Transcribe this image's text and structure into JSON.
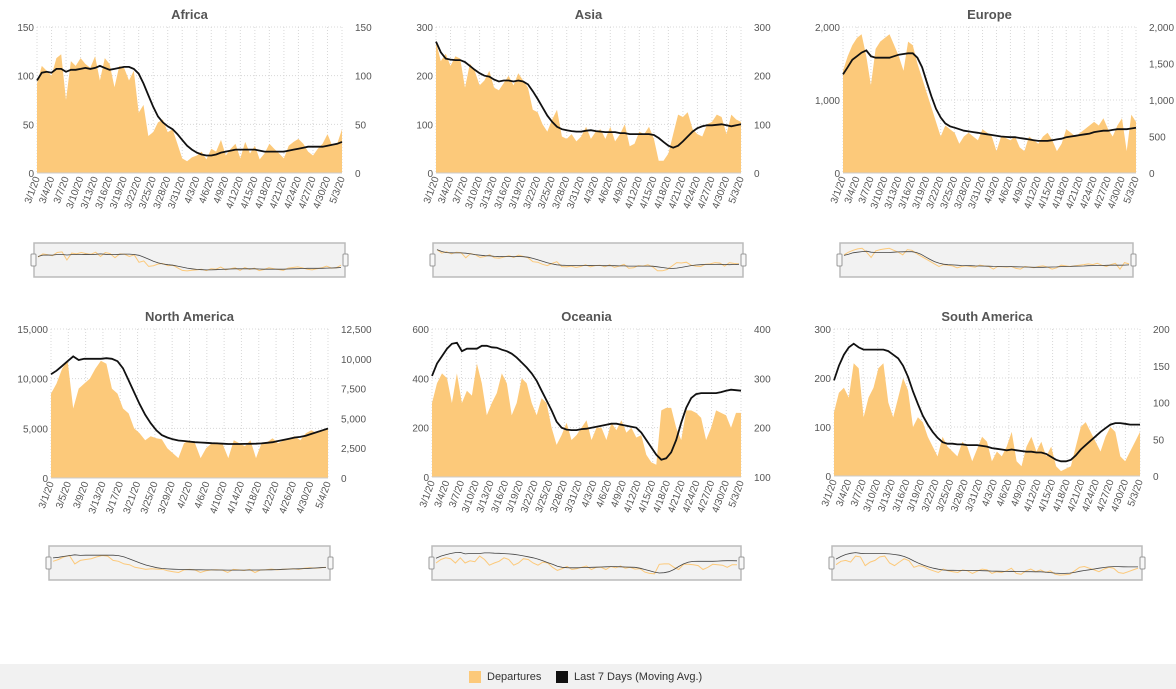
{
  "colors": {
    "area": "#fcc97a",
    "line": "#111111",
    "grid": "#d8d8d8",
    "tick_text": "#555555",
    "title_text": "#555555"
  },
  "legend": {
    "departures_label": "Departures",
    "moving_avg_label": "Last 7 Days (Moving Avg.)",
    "position": "bottom"
  },
  "chart_data": [
    {
      "type": "area",
      "title": "Africa",
      "x_labels": [
        "3/1/20",
        "3/4/20",
        "3/7/20",
        "3/10/20",
        "3/13/20",
        "3/16/20",
        "3/19/20",
        "3/22/20",
        "3/25/20",
        "3/28/20",
        "3/31/20",
        "4/3/20",
        "4/6/20",
        "4/9/20",
        "4/12/20",
        "4/15/20",
        "4/18/20",
        "4/21/20",
        "4/24/20",
        "4/27/20",
        "4/30/20",
        "5/3/20"
      ],
      "y_left_ticks": [
        "0",
        "50",
        "100",
        "150"
      ],
      "ylim_left": [
        0,
        150
      ],
      "y_right_ticks": [
        "0",
        "50",
        "100",
        "150"
      ],
      "ylim_right": [
        0,
        150
      ],
      "departures_axis": "left",
      "moving_avg_axis": "right",
      "departures": [
        92,
        110,
        105,
        100,
        118,
        122,
        75,
        115,
        110,
        118,
        112,
        108,
        120,
        95,
        118,
        112,
        88,
        110,
        108,
        95,
        105,
        62,
        70,
        38,
        42,
        52,
        55,
        42,
        45,
        30,
        15,
        12,
        16,
        18,
        22,
        14,
        25,
        22,
        34,
        18,
        25,
        30,
        15,
        32,
        20,
        28,
        14,
        20,
        30,
        25,
        20,
        15,
        28,
        32,
        35,
        30,
        22,
        18,
        25,
        30,
        40,
        28,
        30,
        45
      ],
      "moving_avg": [
        95,
        103,
        104,
        103,
        107,
        107,
        104,
        106,
        106,
        107,
        108,
        107,
        108,
        110,
        108,
        106,
        107,
        108,
        109,
        109,
        107,
        102,
        92,
        80,
        68,
        58,
        52,
        48,
        45,
        40,
        34,
        28,
        24,
        21,
        19,
        18,
        18,
        19,
        21,
        22,
        23,
        24,
        24,
        24,
        24,
        24,
        23,
        22,
        22,
        22,
        22,
        22,
        23,
        24,
        25,
        26,
        27,
        27,
        27,
        27,
        28,
        29,
        30,
        32
      ]
    },
    {
      "type": "area",
      "title": "Asia",
      "x_labels": [
        "3/1/20",
        "3/4/20",
        "3/7/20",
        "3/10/20",
        "3/13/20",
        "3/16/20",
        "3/19/20",
        "3/22/20",
        "3/25/20",
        "3/28/20",
        "3/31/20",
        "4/3/20",
        "4/6/20",
        "4/9/20",
        "4/12/20",
        "4/15/20",
        "4/18/20",
        "4/21/20",
        "4/24/20",
        "4/27/20",
        "4/30/20",
        "5/3/20"
      ],
      "y_left_ticks": [
        "0",
        "100",
        "200",
        "300"
      ],
      "ylim_left": [
        0,
        300
      ],
      "y_right_ticks": [
        "0",
        "100",
        "200",
        "300"
      ],
      "ylim_right": [
        0,
        300
      ],
      "departures_axis": "left",
      "moving_avg_axis": "right",
      "departures": [
        270,
        230,
        245,
        220,
        240,
        235,
        175,
        225,
        210,
        180,
        190,
        210,
        175,
        170,
        185,
        200,
        180,
        205,
        190,
        175,
        130,
        125,
        100,
        85,
        110,
        130,
        75,
        70,
        80,
        65,
        75,
        95,
        70,
        85,
        90,
        70,
        95,
        65,
        80,
        100,
        55,
        60,
        85,
        80,
        95,
        70,
        25,
        25,
        40,
        80,
        120,
        115,
        125,
        90,
        80,
        75,
        100,
        105,
        120,
        115,
        80,
        120,
        110,
        105
      ],
      "moving_avg": [
        270,
        248,
        235,
        233,
        232,
        232,
        228,
        220,
        212,
        205,
        200,
        198,
        192,
        188,
        190,
        190,
        188,
        190,
        188,
        182,
        168,
        152,
        135,
        118,
        105,
        95,
        90,
        88,
        86,
        85,
        85,
        87,
        88,
        86,
        85,
        84,
        84,
        84,
        82,
        82,
        80,
        80,
        80,
        80,
        80,
        78,
        72,
        64,
        56,
        52,
        56,
        65,
        75,
        85,
        92,
        96,
        98,
        98,
        99,
        100,
        98,
        96,
        98,
        100
      ]
    },
    {
      "type": "area",
      "title": "Europe",
      "x_labels": [
        "3/1/20",
        "3/4/20",
        "3/7/20",
        "3/10/20",
        "3/13/20",
        "3/16/20",
        "3/19/20",
        "3/22/20",
        "3/25/20",
        "3/28/20",
        "3/31/20",
        "4/3/20",
        "4/6/20",
        "4/9/20",
        "4/12/20",
        "4/15/20",
        "4/18/20",
        "4/21/20",
        "4/24/20",
        "4/27/20",
        "4/30/20",
        "5/3/20"
      ],
      "y_left_ticks": [
        "0",
        "1,000",
        "2,000"
      ],
      "ylim_left": [
        0,
        2000
      ],
      "y_right_ticks": [
        "0",
        "500",
        "1,000",
        "1,500",
        "2,000"
      ],
      "ylim_right": [
        0,
        2000
      ],
      "departures_axis": "left",
      "moving_avg_axis": "right",
      "departures": [
        1400,
        1600,
        1750,
        1850,
        1900,
        1600,
        1200,
        1700,
        1800,
        1850,
        1900,
        1750,
        1600,
        1400,
        1800,
        1750,
        1500,
        1300,
        1100,
        900,
        700,
        500,
        650,
        600,
        550,
        400,
        500,
        550,
        500,
        450,
        600,
        550,
        500,
        300,
        500,
        480,
        450,
        500,
        350,
        300,
        500,
        450,
        400,
        500,
        550,
        450,
        300,
        400,
        600,
        550,
        500,
        550,
        600,
        650,
        700,
        650,
        750,
        600,
        500,
        650,
        750,
        300,
        800,
        700
      ],
      "moving_avg": [
        1350,
        1450,
        1550,
        1600,
        1650,
        1680,
        1600,
        1580,
        1580,
        1580,
        1580,
        1600,
        1620,
        1630,
        1640,
        1640,
        1580,
        1450,
        1250,
        1050,
        880,
        760,
        680,
        640,
        620,
        600,
        580,
        570,
        560,
        550,
        540,
        530,
        520,
        510,
        500,
        495,
        490,
        490,
        480,
        470,
        460,
        450,
        440,
        440,
        440,
        450,
        460,
        470,
        490,
        500,
        510,
        520,
        530,
        540,
        560,
        570,
        580,
        580,
        590,
        600,
        600,
        600,
        610,
        620
      ]
    },
    {
      "type": "area",
      "title": "North America",
      "x_labels": [
        "3/1/20",
        "3/5/20",
        "3/9/20",
        "3/13/20",
        "3/17/20",
        "3/21/20",
        "3/25/20",
        "3/29/20",
        "4/2/20",
        "4/6/20",
        "4/10/20",
        "4/14/20",
        "4/18/20",
        "4/22/20",
        "4/26/20",
        "4/30/20",
        "5/4/20"
      ],
      "y_left_ticks": [
        "0",
        "5,000",
        "10,000",
        "15,000"
      ],
      "ylim_left": [
        0,
        15000
      ],
      "y_right_ticks": [
        "0",
        "2,500",
        "5,000",
        "7,500",
        "10,000",
        "12,500"
      ],
      "ylim_right": [
        0,
        12500
      ],
      "departures_axis": "left",
      "moving_avg_axis": "right",
      "departures": [
        8500,
        9500,
        11000,
        11800,
        7000,
        9000,
        9500,
        10000,
        11000,
        11800,
        11500,
        9000,
        8500,
        7000,
        6500,
        5000,
        4500,
        3800,
        4200,
        4000,
        3900,
        3000,
        2500,
        2000,
        3500,
        3800,
        3500,
        2000,
        3000,
        3500,
        3600,
        3400,
        2000,
        3800,
        3500,
        3200,
        3800,
        2000,
        3500,
        3600,
        4000,
        3500,
        3800,
        4000,
        4200,
        3800,
        4500,
        4800,
        4500,
        4800,
        5000
      ],
      "moving_avg": [
        8700,
        9000,
        9400,
        9800,
        10200,
        9900,
        10000,
        10000,
        10000,
        10000,
        10050,
        10000,
        9800,
        9200,
        8200,
        7200,
        6200,
        5300,
        4600,
        4000,
        3600,
        3400,
        3250,
        3150,
        3100,
        3050,
        3000,
        2980,
        2950,
        2920,
        2900,
        2880,
        2850,
        2850,
        2850,
        2860,
        2870,
        2880,
        2900,
        2950,
        3000,
        3100,
        3200,
        3300,
        3400,
        3450,
        3550,
        3700,
        3850,
        4000,
        4150
      ]
    },
    {
      "type": "area",
      "title": "Oceania",
      "x_labels": [
        "3/1/20",
        "3/4/20",
        "3/7/20",
        "3/10/20",
        "3/13/20",
        "3/16/20",
        "3/19/20",
        "3/22/20",
        "3/25/20",
        "3/28/20",
        "3/31/20",
        "4/3/20",
        "4/6/20",
        "4/9/20",
        "4/12/20",
        "4/15/20",
        "4/18/20",
        "4/21/20",
        "4/24/20",
        "4/27/20",
        "4/30/20",
        "5/3/20"
      ],
      "y_left_ticks": [
        "0",
        "200",
        "400",
        "600"
      ],
      "ylim_left": [
        0,
        600
      ],
      "y_right_ticks": [
        "100",
        "200",
        "300",
        "400"
      ],
      "ylim_right": [
        100,
        400
      ],
      "departures_axis": "left",
      "moving_avg_axis": "right",
      "departures": [
        300,
        380,
        420,
        400,
        300,
        420,
        300,
        350,
        330,
        460,
        380,
        250,
        300,
        340,
        420,
        380,
        250,
        300,
        400,
        380,
        300,
        250,
        320,
        300,
        200,
        130,
        170,
        220,
        150,
        170,
        200,
        230,
        150,
        200,
        200,
        150,
        220,
        190,
        230,
        180,
        200,
        160,
        170,
        90,
        60,
        50,
        270,
        280,
        280,
        200,
        150,
        270,
        270,
        260,
        240,
        150,
        200,
        270,
        260,
        250,
        200,
        260,
        260
      ],
      "moving_avg": [
        305,
        330,
        345,
        360,
        370,
        372,
        355,
        360,
        360,
        360,
        366,
        366,
        363,
        362,
        358,
        355,
        350,
        342,
        332,
        322,
        310,
        295,
        275,
        255,
        235,
        212,
        200,
        196,
        195,
        195,
        197,
        198,
        200,
        202,
        204,
        206,
        208,
        208,
        206,
        204,
        202,
        200,
        190,
        175,
        160,
        145,
        135,
        138,
        150,
        175,
        210,
        240,
        260,
        268,
        270,
        270,
        270,
        270,
        272,
        275,
        277,
        276,
        275
      ]
    },
    {
      "type": "area",
      "title": "South America",
      "x_labels": [
        "3/1/20",
        "3/4/20",
        "3/7/20",
        "3/10/20",
        "3/13/20",
        "3/16/20",
        "3/19/20",
        "3/22/20",
        "3/25/20",
        "3/28/20",
        "3/31/20",
        "4/3/20",
        "4/6/20",
        "4/9/20",
        "4/12/20",
        "4/15/20",
        "4/18/20",
        "4/21/20",
        "4/24/20",
        "4/27/20",
        "4/30/20",
        "5/3/20"
      ],
      "y_left_ticks": [
        "0",
        "100",
        "200",
        "300"
      ],
      "ylim_left": [
        0,
        300
      ],
      "y_right_ticks": [
        "0",
        "50",
        "100",
        "150",
        "200"
      ],
      "ylim_right": [
        0,
        200
      ],
      "departures_axis": "left",
      "moving_avg_axis": "right",
      "departures": [
        130,
        170,
        180,
        160,
        230,
        220,
        120,
        160,
        180,
        220,
        230,
        150,
        120,
        160,
        200,
        175,
        100,
        120,
        110,
        80,
        60,
        40,
        80,
        60,
        50,
        40,
        70,
        60,
        30,
        55,
        80,
        70,
        30,
        50,
        40,
        60,
        90,
        30,
        20,
        60,
        80,
        50,
        70,
        40,
        60,
        20,
        10,
        15,
        20,
        60,
        100,
        110,
        90,
        70,
        50,
        80,
        100,
        90,
        40,
        30,
        50,
        70,
        90
      ],
      "moving_avg": [
        130,
        150,
        165,
        175,
        180,
        175,
        172,
        172,
        172,
        172,
        172,
        170,
        165,
        160,
        150,
        135,
        115,
        98,
        82,
        70,
        60,
        52,
        46,
        44,
        44,
        43,
        43,
        42,
        42,
        42,
        41,
        40,
        38,
        37,
        36,
        35,
        36,
        35,
        34,
        33,
        33,
        32,
        32,
        30,
        26,
        22,
        20,
        20,
        22,
        28,
        36,
        42,
        48,
        54,
        60,
        65,
        70,
        72,
        72,
        71,
        70,
        70,
        70
      ]
    }
  ]
}
